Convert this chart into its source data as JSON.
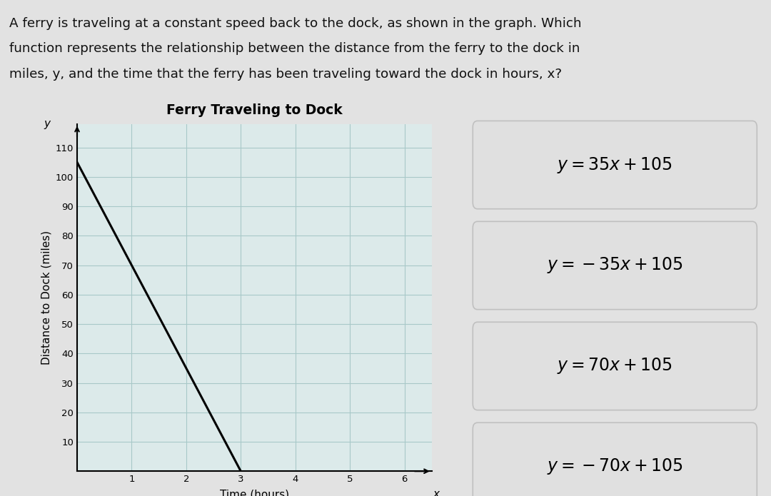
{
  "question_text_line1": "A ferry is traveling at a constant speed back to the dock, as shown in the graph. Which",
  "question_text_line2": "function represents the relationship between the distance from the ferry to the dock in",
  "question_text_line3": "miles, y, and the time that the ferry has been traveling toward the dock in hours, x?",
  "chart_title": "Ferry Traveling to Dock",
  "xlabel": "Time (hours)",
  "ylabel": "Distance to Dock (miles)",
  "x_axis_label_symbol": "x",
  "y_axis_label_symbol": "y",
  "line_x": [
    0,
    3
  ],
  "line_y": [
    105,
    0
  ],
  "yticks": [
    10,
    20,
    30,
    40,
    50,
    60,
    70,
    80,
    90,
    100,
    110
  ],
  "xticks": [
    1,
    2,
    3,
    4,
    5,
    6
  ],
  "xlim": [
    0,
    6.5
  ],
  "ylim": [
    0,
    118
  ],
  "answer_choices_math": [
    "$y = 35x + 105$",
    "$y = -35x + 105$",
    "$y = 70x + 105$",
    "$y = -70x + 105$"
  ],
  "bg_question_color": "#e2e2e2",
  "bg_right_color": "#2878c8",
  "chart_bg_color": "#dceaea",
  "grid_color": "#a8c8c8",
  "line_color": "#000000",
  "answer_box_facecolor": "#e0e0e0",
  "answer_box_edgecolor": "#c0c0c0",
  "question_bg_color": "#d8d8d8"
}
